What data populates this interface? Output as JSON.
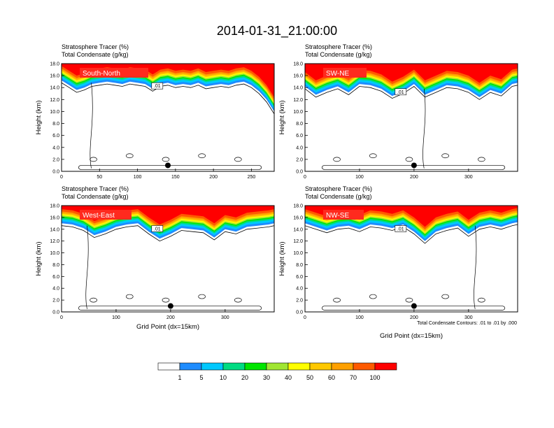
{
  "figure": {
    "title": "2014-01-31_21:00:00",
    "panel_header_line1": "Stratosphere Tracer   (%)",
    "panel_header_line2": "Total Condensate   (g/kg)",
    "xlabel": "Grid Point (dx=15km)",
    "ylabel": "Height (km)",
    "contour_note": "Total Condensate Contours: .01 to .01 by .000",
    "contour_label": ".01"
  },
  "colors": {
    "levels": [
      "#ffffff",
      "#1e8cff",
      "#00c8ff",
      "#00dc82",
      "#00e600",
      "#a0e632",
      "#ffff00",
      "#ffc800",
      "#ffa000",
      "#ff5a00",
      "#ff0000"
    ],
    "level_labels": [
      "1",
      "5",
      "10",
      "20",
      "30",
      "40",
      "50",
      "60",
      "70",
      "100"
    ],
    "panel_label_bg": "#ff2a1e"
  },
  "chart_data": [
    {
      "type": "heatmap",
      "panel": "South-North",
      "title": "South-North",
      "xlim": [
        0,
        280
      ],
      "ylim": [
        0,
        18
      ],
      "xticks": [
        0,
        50,
        100,
        150,
        200,
        250
      ],
      "yticks": [
        "0.0",
        "2.0",
        "4.0",
        "6.0",
        "8.0",
        "10.0",
        "12.0",
        "14.0",
        "16.0",
        "18.0"
      ],
      "marker": {
        "x": 140,
        "y": 1.0
      },
      "tracer_boundary": {
        "x": [
          0,
          10,
          20,
          30,
          40,
          50,
          60,
          70,
          80,
          90,
          100,
          110,
          120,
          130,
          140,
          150,
          160,
          170,
          180,
          190,
          200,
          210,
          220,
          230,
          240,
          250,
          260,
          270,
          280
        ],
        "top": [
          15.2,
          14.4,
          13.6,
          14.0,
          14.6,
          14.8,
          15.0,
          14.8,
          14.6,
          15.0,
          14.8,
          14.6,
          13.8,
          14.6,
          14.8,
          14.4,
          14.6,
          14.4,
          14.8,
          14.2,
          14.4,
          14.6,
          14.4,
          14.8,
          15.0,
          14.4,
          13.4,
          12.0,
          10.0
        ]
      }
    },
    {
      "type": "heatmap",
      "panel": "SW-NE",
      "title": "SW-NE",
      "xlim": [
        0,
        390
      ],
      "ylim": [
        0,
        18
      ],
      "xticks": [
        0,
        100,
        200,
        300
      ],
      "yticks": [
        "0.0",
        "2.0",
        "4.0",
        "6.0",
        "8.0",
        "10.0",
        "12.0",
        "14.0",
        "16.0",
        "18.0"
      ],
      "marker": {
        "x": 200,
        "y": 1.0
      },
      "tracer_boundary": {
        "x": [
          0,
          20,
          40,
          60,
          80,
          100,
          120,
          140,
          160,
          180,
          200,
          220,
          240,
          260,
          280,
          300,
          320,
          340,
          360,
          380,
          390
        ],
        "top": [
          14.2,
          12.8,
          13.6,
          14.2,
          13.2,
          14.6,
          14.4,
          13.8,
          12.6,
          13.4,
          14.6,
          12.8,
          13.6,
          14.4,
          14.2,
          13.6,
          12.4,
          13.6,
          13.0,
          14.6,
          14.8
        ]
      }
    },
    {
      "type": "heatmap",
      "panel": "West-East",
      "title": "West-East",
      "xlim": [
        0,
        390
      ],
      "ylim": [
        0,
        18
      ],
      "xticks": [
        0,
        100,
        200,
        300
      ],
      "yticks": [
        "0.0",
        "2.0",
        "4.0",
        "6.0",
        "8.0",
        "10.0",
        "12.0",
        "14.0",
        "16.0",
        "18.0"
      ],
      "marker": {
        "x": 200,
        "y": 1.0
      },
      "tracer_boundary": {
        "x": [
          0,
          20,
          40,
          60,
          80,
          100,
          120,
          140,
          160,
          180,
          200,
          220,
          240,
          260,
          280,
          300,
          320,
          340,
          360,
          380,
          390
        ],
        "top": [
          15.0,
          14.8,
          14.2,
          13.0,
          13.6,
          14.4,
          14.8,
          15.0,
          13.6,
          12.4,
          13.2,
          14.2,
          14.0,
          13.8,
          12.6,
          14.0,
          13.6,
          14.4,
          14.6,
          14.8,
          15.0
        ]
      }
    },
    {
      "type": "heatmap",
      "panel": "NW-SE",
      "title": "NW-SE",
      "xlim": [
        0,
        390
      ],
      "ylim": [
        0,
        18
      ],
      "xticks": [
        0,
        100,
        200,
        300
      ],
      "yticks": [
        "0.0",
        "2.0",
        "4.0",
        "6.0",
        "8.0",
        "10.0",
        "12.0",
        "14.0",
        "16.0",
        "18.0"
      ],
      "marker": {
        "x": 200,
        "y": 1.0
      },
      "tracer_boundary": {
        "x": [
          0,
          20,
          40,
          60,
          80,
          100,
          120,
          140,
          160,
          180,
          200,
          220,
          240,
          260,
          280,
          300,
          320,
          340,
          360,
          380,
          390
        ],
        "top": [
          15.0,
          14.4,
          13.8,
          14.4,
          14.6,
          14.0,
          14.8,
          14.6,
          14.2,
          14.8,
          13.6,
          12.0,
          13.6,
          14.2,
          14.6,
          13.2,
          14.4,
          14.8,
          14.4,
          15.0,
          15.2
        ]
      }
    }
  ]
}
